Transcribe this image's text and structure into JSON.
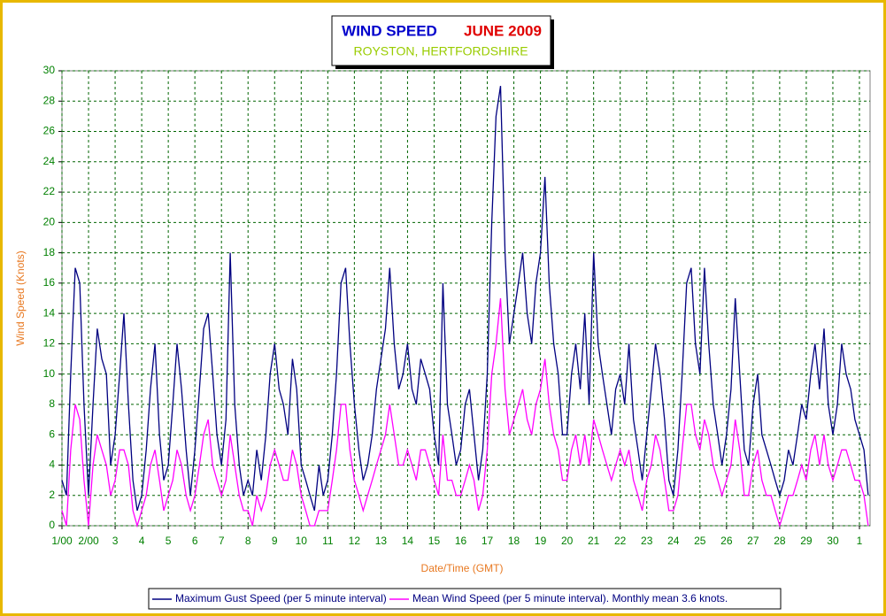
{
  "chart_data": {
    "type": "line",
    "title": "WIND SPEED",
    "title_date": "JUNE 2009",
    "subtitle": "ROYSTON, HERTFORDSHIRE",
    "xlabel": "Date/Time (GMT)",
    "ylabel": "Wind Speed (Knots)",
    "grid": true,
    "legend": "bottom",
    "xlim": [
      0,
      30.4
    ],
    "ylim": [
      0,
      30
    ],
    "yticks": [
      0,
      2,
      4,
      6,
      8,
      10,
      12,
      14,
      16,
      18,
      20,
      22,
      24,
      26,
      28,
      30
    ],
    "xticks": [
      {
        "value": 0,
        "label": "1/00"
      },
      {
        "value": 1,
        "label": "2/00"
      },
      {
        "value": 2,
        "label": "3"
      },
      {
        "value": 3,
        "label": "4"
      },
      {
        "value": 4,
        "label": "5"
      },
      {
        "value": 5,
        "label": "6"
      },
      {
        "value": 6,
        "label": "7"
      },
      {
        "value": 7,
        "label": "8"
      },
      {
        "value": 8,
        "label": "9"
      },
      {
        "value": 9,
        "label": "10"
      },
      {
        "value": 10,
        "label": "11"
      },
      {
        "value": 11,
        "label": "12"
      },
      {
        "value": 12,
        "label": "13"
      },
      {
        "value": 13,
        "label": "14"
      },
      {
        "value": 14,
        "label": "15"
      },
      {
        "value": 15,
        "label": "16"
      },
      {
        "value": 16,
        "label": "17"
      },
      {
        "value": 17,
        "label": "18"
      },
      {
        "value": 18,
        "label": "19"
      },
      {
        "value": 19,
        "label": "20"
      },
      {
        "value": 20,
        "label": "21"
      },
      {
        "value": 21,
        "label": "22"
      },
      {
        "value": 22,
        "label": "23"
      },
      {
        "value": 23,
        "label": "24"
      },
      {
        "value": 24,
        "label": "25"
      },
      {
        "value": 25,
        "label": "26"
      },
      {
        "value": 26,
        "label": "27"
      },
      {
        "value": 27,
        "label": "28"
      },
      {
        "value": 28,
        "label": "29"
      },
      {
        "value": 29,
        "label": "30"
      },
      {
        "value": 30,
        "label": "1"
      }
    ],
    "x": [
      0,
      0.17,
      0.33,
      0.5,
      0.67,
      0.83,
      1,
      1.17,
      1.33,
      1.5,
      1.67,
      1.83,
      2,
      2.17,
      2.33,
      2.5,
      2.67,
      2.83,
      3,
      3.17,
      3.33,
      3.5,
      3.67,
      3.83,
      4,
      4.17,
      4.33,
      4.5,
      4.67,
      4.83,
      5,
      5.17,
      5.33,
      5.5,
      5.67,
      5.83,
      6,
      6.17,
      6.33,
      6.5,
      6.67,
      6.83,
      7,
      7.17,
      7.33,
      7.5,
      7.67,
      7.83,
      8,
      8.17,
      8.33,
      8.5,
      8.67,
      8.83,
      9,
      9.17,
      9.33,
      9.5,
      9.67,
      9.83,
      10,
      10.17,
      10.33,
      10.5,
      10.67,
      10.83,
      11,
      11.17,
      11.33,
      11.5,
      11.67,
      11.83,
      12,
      12.17,
      12.33,
      12.5,
      12.67,
      12.83,
      13,
      13.17,
      13.33,
      13.5,
      13.67,
      13.83,
      14,
      14.17,
      14.33,
      14.5,
      14.67,
      14.83,
      15,
      15.17,
      15.33,
      15.5,
      15.67,
      15.83,
      16,
      16.17,
      16.33,
      16.5,
      16.67,
      16.83,
      17,
      17.17,
      17.33,
      17.5,
      17.67,
      17.83,
      18,
      18.17,
      18.33,
      18.5,
      18.67,
      18.83,
      19,
      19.17,
      19.33,
      19.5,
      19.67,
      19.83,
      20,
      20.17,
      20.33,
      20.5,
      20.67,
      20.83,
      21,
      21.17,
      21.33,
      21.5,
      21.67,
      21.83,
      22,
      22.17,
      22.33,
      22.5,
      22.67,
      22.83,
      23,
      23.17,
      23.33,
      23.5,
      23.67,
      23.83,
      24,
      24.17,
      24.33,
      24.5,
      24.67,
      24.83,
      25,
      25.17,
      25.33,
      25.5,
      25.67,
      25.83,
      26,
      26.17,
      26.33,
      26.5,
      26.67,
      26.83,
      27,
      27.17,
      27.33,
      27.5,
      27.67,
      27.83,
      28,
      28.17,
      28.33,
      28.5,
      28.67,
      28.83,
      29,
      29.17,
      29.33,
      29.5,
      29.67,
      29.83,
      30,
      30.17,
      30.33
    ],
    "series": [
      {
        "name": "Maximum Gust Speed (per 5 minute interval)",
        "color": "#000080",
        "values": [
          3,
          2,
          10,
          17,
          16,
          8,
          2,
          8,
          13,
          11,
          10,
          4,
          6,
          10,
          14,
          8,
          3,
          1,
          2,
          5,
          9,
          12,
          6,
          3,
          4,
          8,
          12,
          9,
          5,
          2,
          5,
          9,
          13,
          14,
          10,
          6,
          4,
          7,
          18,
          8,
          4,
          2,
          3,
          2,
          5,
          3,
          6,
          10,
          12,
          9,
          8,
          6,
          11,
          9,
          4,
          3,
          2,
          1,
          4,
          2,
          3,
          6,
          10,
          16,
          17,
          12,
          8,
          5,
          3,
          4,
          6,
          9,
          11,
          13,
          17,
          12,
          9,
          10,
          12,
          9,
          8,
          11,
          10,
          9,
          6,
          4,
          16,
          8,
          6,
          4,
          5,
          8,
          9,
          6,
          3,
          5,
          10,
          20,
          27,
          29,
          18,
          12,
          14,
          16,
          18,
          14,
          12,
          16,
          18,
          23,
          16,
          12,
          10,
          6,
          6,
          10,
          12,
          9,
          14,
          8,
          18,
          12,
          10,
          8,
          6,
          9,
          10,
          8,
          12,
          7,
          5,
          3,
          6,
          9,
          12,
          10,
          7,
          3,
          2,
          5,
          10,
          16,
          17,
          12,
          10,
          17,
          12,
          8,
          6,
          4,
          6,
          9,
          15,
          10,
          5,
          4,
          8,
          10,
          6,
          5,
          4,
          3,
          2,
          3,
          5,
          4,
          6,
          8,
          7,
          10,
          12,
          9,
          13,
          8,
          6,
          8,
          12,
          10,
          9,
          7,
          6,
          5,
          2
        ]
      },
      {
        "name": "Mean Wind Speed (per 5 minute interval). Monthly mean 3.6 knots.",
        "color": "#ff00ff",
        "values": [
          1,
          0,
          5,
          8,
          7,
          3,
          0,
          4,
          6,
          5,
          4,
          2,
          3,
          5,
          5,
          4,
          1,
          0,
          1,
          2,
          4,
          5,
          3,
          1,
          2,
          3,
          5,
          4,
          2,
          1,
          2,
          4,
          6,
          7,
          4,
          3,
          2,
          3,
          6,
          4,
          2,
          1,
          1,
          0,
          2,
          1,
          2,
          4,
          5,
          4,
          3,
          3,
          5,
          4,
          2,
          1,
          0,
          0,
          1,
          1,
          1,
          3,
          5,
          8,
          8,
          5,
          3,
          2,
          1,
          2,
          3,
          4,
          5,
          6,
          8,
          6,
          4,
          4,
          5,
          4,
          3,
          5,
          5,
          4,
          3,
          2,
          6,
          3,
          3,
          2,
          2,
          3,
          4,
          3,
          1,
          2,
          5,
          10,
          12,
          15,
          9,
          6,
          7,
          8,
          9,
          7,
          6,
          8,
          9,
          11,
          8,
          6,
          5,
          3,
          3,
          5,
          6,
          4,
          6,
          4,
          7,
          6,
          5,
          4,
          3,
          4,
          5,
          4,
          5,
          3,
          2,
          1,
          3,
          4,
          6,
          5,
          3,
          1,
          1,
          2,
          5,
          8,
          8,
          6,
          5,
          7,
          6,
          4,
          3,
          2,
          3,
          4,
          7,
          5,
          2,
          2,
          4,
          5,
          3,
          2,
          2,
          1,
          0,
          1,
          2,
          2,
          3,
          4,
          3,
          5,
          6,
          4,
          6,
          4,
          3,
          4,
          5,
          5,
          4,
          3,
          3,
          2,
          0
        ]
      }
    ]
  }
}
